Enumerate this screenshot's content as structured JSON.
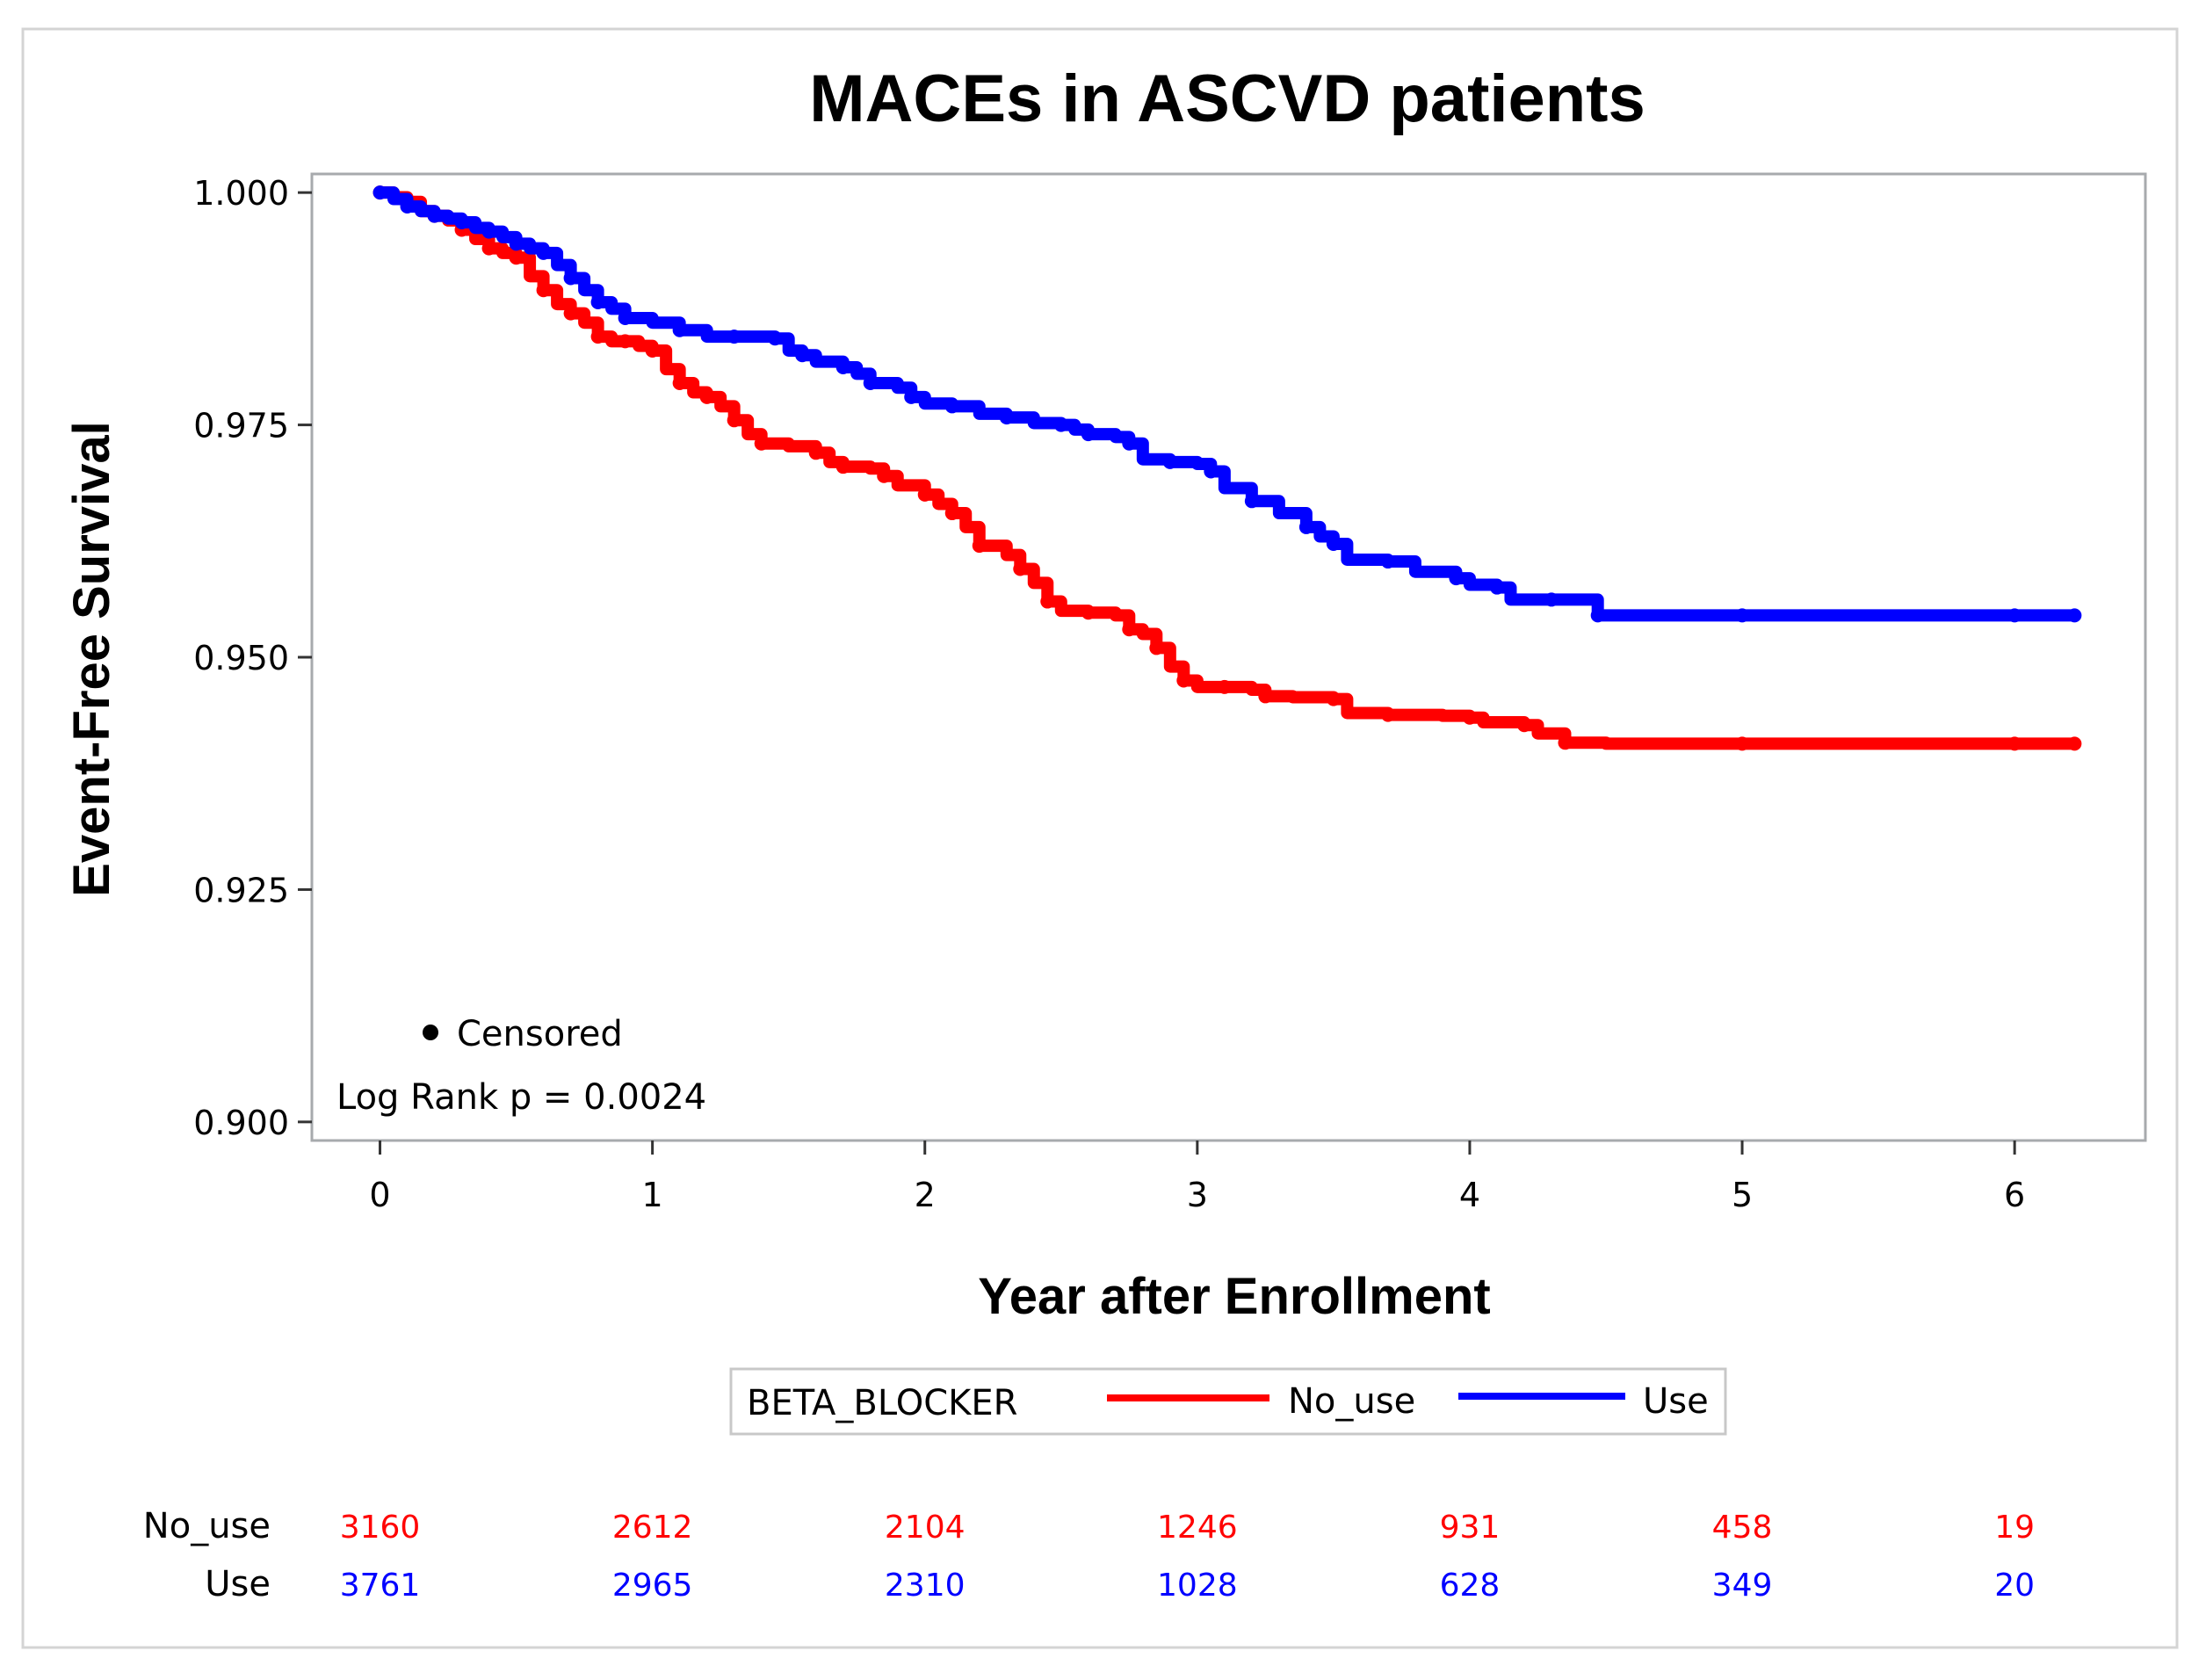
{
  "chart_data": {
    "type": "line",
    "title": "MACEs in ASCVD patients",
    "xlabel": "Year after Enrollment",
    "ylabel": "Event-Free Survival",
    "xlim": [
      -0.25,
      6.48
    ],
    "ylim": [
      0.898,
      1.002
    ],
    "x_ticks": [
      0,
      1,
      2,
      3,
      4,
      5,
      6
    ],
    "x_tick_labels": [
      "0",
      "1",
      "2",
      "3",
      "4",
      "5",
      "6"
    ],
    "y_ticks": [
      0.9,
      0.925,
      0.95,
      0.975,
      1.0
    ],
    "y_tick_labels": [
      "0.900",
      "0.925",
      "0.950",
      "0.975",
      "1.000"
    ],
    "grid": false,
    "censored_legend_label": "Censored",
    "annotation": "Log Rank p = 0.0024",
    "legend": {
      "title": "BETA_BLOCKER",
      "placement": "bottom",
      "entries": [
        "No_use",
        "Use"
      ]
    },
    "series": [
      {
        "name": "No_use",
        "color": "#ff0000",
        "points": [
          [
            0,
            1.0
          ],
          [
            0.05,
            0.9995
          ],
          [
            0.1,
            0.999
          ],
          [
            0.15,
            0.998
          ],
          [
            0.2,
            0.9975
          ],
          [
            0.25,
            0.997
          ],
          [
            0.3,
            0.996
          ],
          [
            0.35,
            0.995
          ],
          [
            0.4,
            0.994
          ],
          [
            0.45,
            0.9935
          ],
          [
            0.5,
            0.993
          ],
          [
            0.55,
            0.991
          ],
          [
            0.6,
            0.9895
          ],
          [
            0.65,
            0.988
          ],
          [
            0.7,
            0.987
          ],
          [
            0.75,
            0.986
          ],
          [
            0.8,
            0.9845
          ],
          [
            0.85,
            0.984
          ],
          [
            0.9,
            0.984
          ],
          [
            0.95,
            0.9835
          ],
          [
            1.0,
            0.983
          ],
          [
            1.05,
            0.981
          ],
          [
            1.1,
            0.9795
          ],
          [
            1.15,
            0.9785
          ],
          [
            1.2,
            0.978
          ],
          [
            1.25,
            0.977
          ],
          [
            1.3,
            0.9755
          ],
          [
            1.35,
            0.974
          ],
          [
            1.4,
            0.973
          ],
          [
            1.5,
            0.9727
          ],
          [
            1.6,
            0.972
          ],
          [
            1.65,
            0.971
          ],
          [
            1.7,
            0.9705
          ],
          [
            1.8,
            0.9703
          ],
          [
            1.85,
            0.9695
          ],
          [
            1.9,
            0.9685
          ],
          [
            2.0,
            0.9675
          ],
          [
            2.05,
            0.9665
          ],
          [
            2.1,
            0.9655
          ],
          [
            2.15,
            0.964
          ],
          [
            2.2,
            0.962
          ],
          [
            2.3,
            0.961
          ],
          [
            2.35,
            0.9595
          ],
          [
            2.4,
            0.958
          ],
          [
            2.45,
            0.956
          ],
          [
            2.5,
            0.955
          ],
          [
            2.6,
            0.9548
          ],
          [
            2.7,
            0.9545
          ],
          [
            2.75,
            0.953
          ],
          [
            2.8,
            0.9525
          ],
          [
            2.85,
            0.951
          ],
          [
            2.9,
            0.949
          ],
          [
            2.95,
            0.9475
          ],
          [
            3.0,
            0.9468
          ],
          [
            3.1,
            0.9468
          ],
          [
            3.2,
            0.9465
          ],
          [
            3.25,
            0.9458
          ],
          [
            3.35,
            0.9457
          ],
          [
            3.5,
            0.9455
          ],
          [
            3.55,
            0.944
          ],
          [
            3.7,
            0.9438
          ],
          [
            3.9,
            0.9437
          ],
          [
            4.0,
            0.9435
          ],
          [
            4.05,
            0.943
          ],
          [
            4.2,
            0.9427
          ],
          [
            4.25,
            0.9418
          ],
          [
            4.35,
            0.9408
          ],
          [
            4.5,
            0.9407
          ],
          [
            5.0,
            0.9407
          ],
          [
            5.5,
            0.9407
          ],
          [
            6.0,
            0.9407
          ],
          [
            6.22,
            0.9407
          ]
        ]
      },
      {
        "name": "Use",
        "color": "#0000ff",
        "points": [
          [
            0,
            1.0
          ],
          [
            0.05,
            0.9993
          ],
          [
            0.1,
            0.9985
          ],
          [
            0.15,
            0.998
          ],
          [
            0.2,
            0.9975
          ],
          [
            0.25,
            0.9972
          ],
          [
            0.3,
            0.9968
          ],
          [
            0.35,
            0.9962
          ],
          [
            0.4,
            0.9958
          ],
          [
            0.45,
            0.9952
          ],
          [
            0.5,
            0.9945
          ],
          [
            0.55,
            0.994
          ],
          [
            0.6,
            0.9935
          ],
          [
            0.65,
            0.9922
          ],
          [
            0.7,
            0.9908
          ],
          [
            0.75,
            0.9895
          ],
          [
            0.8,
            0.9882
          ],
          [
            0.85,
            0.9875
          ],
          [
            0.9,
            0.9865
          ],
          [
            1.0,
            0.986
          ],
          [
            1.1,
            0.9852
          ],
          [
            1.2,
            0.9845
          ],
          [
            1.3,
            0.9845
          ],
          [
            1.4,
            0.9845
          ],
          [
            1.45,
            0.9843
          ],
          [
            1.5,
            0.983
          ],
          [
            1.55,
            0.9825
          ],
          [
            1.6,
            0.9818
          ],
          [
            1.7,
            0.9812
          ],
          [
            1.75,
            0.9805
          ],
          [
            1.8,
            0.9795
          ],
          [
            1.9,
            0.979
          ],
          [
            1.95,
            0.978
          ],
          [
            2.0,
            0.9773
          ],
          [
            2.1,
            0.977
          ],
          [
            2.2,
            0.9762
          ],
          [
            2.3,
            0.9758
          ],
          [
            2.4,
            0.9752
          ],
          [
            2.5,
            0.975
          ],
          [
            2.55,
            0.9745
          ],
          [
            2.6,
            0.974
          ],
          [
            2.7,
            0.9737
          ],
          [
            2.75,
            0.973
          ],
          [
            2.8,
            0.9713
          ],
          [
            2.9,
            0.971
          ],
          [
            3.0,
            0.9708
          ],
          [
            3.05,
            0.97
          ],
          [
            3.1,
            0.9682
          ],
          [
            3.2,
            0.9668
          ],
          [
            3.3,
            0.9655
          ],
          [
            3.4,
            0.964
          ],
          [
            3.45,
            0.963
          ],
          [
            3.5,
            0.9622
          ],
          [
            3.55,
            0.9605
          ],
          [
            3.7,
            0.9603
          ],
          [
            3.8,
            0.9592
          ],
          [
            3.95,
            0.9585
          ],
          [
            4.0,
            0.9578
          ],
          [
            4.1,
            0.9575
          ],
          [
            4.15,
            0.9562
          ],
          [
            4.3,
            0.9562
          ],
          [
            4.45,
            0.9562
          ],
          [
            4.47,
            0.9545
          ],
          [
            4.6,
            0.9545
          ],
          [
            5.0,
            0.9545
          ],
          [
            5.5,
            0.9545
          ],
          [
            6.0,
            0.9545
          ],
          [
            6.22,
            0.9545
          ]
        ]
      }
    ],
    "risk_table": {
      "rows": [
        {
          "label": "No_use",
          "color": "#ff0000",
          "values": [
            "3160",
            "2612",
            "2104",
            "1246",
            "931",
            "458",
            "19"
          ]
        },
        {
          "label": "Use",
          "color": "#0000ff",
          "values": [
            "3761",
            "2965",
            "2310",
            "1028",
            "628",
            "349",
            "20"
          ]
        }
      ]
    }
  }
}
